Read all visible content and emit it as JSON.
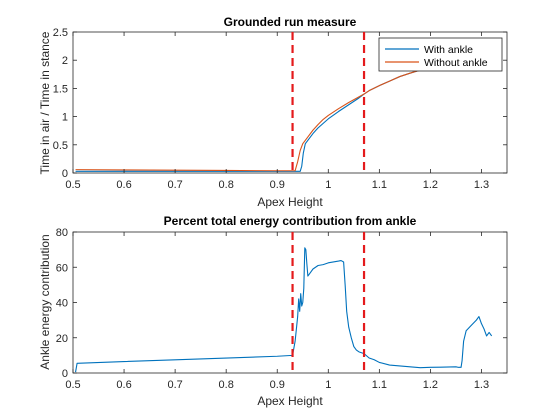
{
  "chart_data": [
    {
      "type": "line",
      "title": "Grounded run measure",
      "xlabel": "Apex Height",
      "ylabel": "Time in air / Time in stance",
      "xlim": [
        0.5,
        1.35
      ],
      "ylim": [
        0,
        2.5
      ],
      "xticks": [
        0.5,
        0.6,
        0.7,
        0.8,
        0.9,
        1.0,
        1.1,
        1.2,
        1.3
      ],
      "xtick_labels": [
        "0.5",
        "0.6",
        "0.7",
        "0.8",
        "0.9",
        "1",
        "1.1",
        "1.2",
        "1.3"
      ],
      "yticks": [
        0,
        0.5,
        1,
        1.5,
        2,
        2.5
      ],
      "ytick_labels": [
        "0",
        "0.5",
        "1",
        "1.5",
        "2",
        "2.5"
      ],
      "legend": "top-right",
      "vlines": [
        0.93,
        1.07
      ],
      "series": [
        {
          "name": "With ankle",
          "color": "#0072BD",
          "points": [
            [
              0.505,
              0.03
            ],
            [
              0.6,
              0.03
            ],
            [
              0.7,
              0.03
            ],
            [
              0.8,
              0.03
            ],
            [
              0.9,
              0.03
            ],
            [
              0.945,
              0.03
            ],
            [
              0.948,
              0.12
            ],
            [
              0.951,
              0.35
            ],
            [
              0.955,
              0.52
            ],
            [
              0.96,
              0.58
            ],
            [
              0.97,
              0.7
            ],
            [
              0.98,
              0.8
            ],
            [
              0.99,
              0.88
            ],
            [
              1.0,
              0.96
            ],
            [
              1.02,
              1.09
            ],
            [
              1.04,
              1.21
            ],
            [
              1.06,
              1.33
            ],
            [
              1.07,
              1.4
            ],
            [
              1.08,
              1.46
            ],
            [
              1.1,
              1.55
            ],
            [
              1.12,
              1.63
            ],
            [
              1.14,
              1.71
            ],
            [
              1.16,
              1.77
            ],
            [
              1.2,
              1.88
            ]
          ]
        },
        {
          "name": "Without ankle",
          "color": "#D95319",
          "points": [
            [
              0.505,
              0.06
            ],
            [
              0.6,
              0.055
            ],
            [
              0.7,
              0.05
            ],
            [
              0.8,
              0.045
            ],
            [
              0.9,
              0.04
            ],
            [
              0.935,
              0.04
            ],
            [
              0.94,
              0.2
            ],
            [
              0.945,
              0.4
            ],
            [
              0.95,
              0.52
            ],
            [
              0.96,
              0.64
            ],
            [
              0.97,
              0.76
            ],
            [
              0.98,
              0.86
            ],
            [
              0.99,
              0.95
            ],
            [
              1.0,
              1.02
            ],
            [
              1.02,
              1.14
            ],
            [
              1.04,
              1.25
            ],
            [
              1.06,
              1.35
            ],
            [
              1.07,
              1.4
            ],
            [
              1.08,
              1.46
            ],
            [
              1.1,
              1.55
            ],
            [
              1.12,
              1.63
            ],
            [
              1.14,
              1.71
            ],
            [
              1.16,
              1.77
            ],
            [
              1.2,
              1.88
            ]
          ]
        }
      ]
    },
    {
      "type": "line",
      "title": "Percent total energy contribution from ankle",
      "xlabel": "Apex Height",
      "ylabel": "Ankle energy contribution",
      "xlim": [
        0.5,
        1.35
      ],
      "ylim": [
        0,
        80
      ],
      "xticks": [
        0.5,
        0.6,
        0.7,
        0.8,
        0.9,
        1.0,
        1.1,
        1.2,
        1.3
      ],
      "xtick_labels": [
        "0.5",
        "0.6",
        "0.7",
        "0.8",
        "0.9",
        "1",
        "1.1",
        "1.2",
        "1.3"
      ],
      "yticks": [
        0,
        20,
        40,
        60,
        80
      ],
      "ytick_labels": [
        "0",
        "20",
        "40",
        "60",
        "80"
      ],
      "vlines": [
        0.93,
        1.07
      ],
      "series": [
        {
          "color": "#0072BD",
          "points": [
            [
              0.505,
              0.5
            ],
            [
              0.508,
              5.5
            ],
            [
              0.6,
              6.5
            ],
            [
              0.7,
              7.5
            ],
            [
              0.8,
              8.5
            ],
            [
              0.9,
              9.5
            ],
            [
              0.93,
              10
            ],
            [
              0.935,
              18
            ],
            [
              0.94,
              32
            ],
            [
              0.942,
              42
            ],
            [
              0.944,
              35
            ],
            [
              0.946,
              45
            ],
            [
              0.948,
              38
            ],
            [
              0.95,
              40
            ],
            [
              0.952,
              48
            ],
            [
              0.954,
              71
            ],
            [
              0.956,
              70
            ],
            [
              0.958,
              62
            ],
            [
              0.96,
              55
            ],
            [
              0.965,
              57
            ],
            [
              0.97,
              59
            ],
            [
              0.98,
              61
            ],
            [
              0.99,
              61.5
            ],
            [
              1.0,
              62.5
            ],
            [
              1.01,
              63
            ],
            [
              1.02,
              63.5
            ],
            [
              1.025,
              63.8
            ],
            [
              1.03,
              63
            ],
            [
              1.033,
              50
            ],
            [
              1.036,
              35
            ],
            [
              1.04,
              26
            ],
            [
              1.045,
              20
            ],
            [
              1.05,
              15
            ],
            [
              1.055,
              13
            ],
            [
              1.06,
              12
            ],
            [
              1.07,
              11
            ],
            [
              1.08,
              8.5
            ],
            [
              1.09,
              7.5
            ],
            [
              1.1,
              6
            ],
            [
              1.12,
              4.5
            ],
            [
              1.14,
              4
            ],
            [
              1.16,
              3.5
            ],
            [
              1.18,
              3
            ],
            [
              1.2,
              3.2
            ],
            [
              1.22,
              3.3
            ],
            [
              1.25,
              3.5
            ],
            [
              1.255,
              3.2
            ],
            [
              1.26,
              3.2
            ],
            [
              1.262,
              7
            ],
            [
              1.265,
              18
            ],
            [
              1.27,
              24
            ],
            [
              1.28,
              27
            ],
            [
              1.29,
              30
            ],
            [
              1.295,
              32
            ],
            [
              1.3,
              28
            ],
            [
              1.305,
              25
            ],
            [
              1.31,
              21
            ],
            [
              1.315,
              23
            ],
            [
              1.32,
              21
            ]
          ]
        }
      ]
    }
  ]
}
